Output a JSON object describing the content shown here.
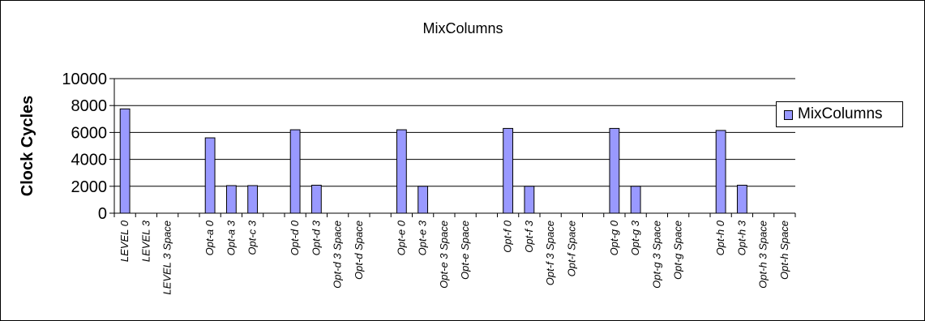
{
  "chart_data": {
    "type": "bar",
    "title": "MixColumns",
    "xlabel": "",
    "ylabel": "Clock Cycles",
    "ylim": [
      0,
      10000
    ],
    "yticks": [
      0,
      2000,
      4000,
      6000,
      8000,
      10000
    ],
    "grid": true,
    "legend_position": "right",
    "categories": [
      "LEVEL 0",
      "LEVEL 3",
      "LEVEL 3 Space",
      "",
      "Opt-a 0",
      "Opt-a 3",
      "Opt-c 3",
      "",
      "Opt-d 0",
      "Opt-d 3",
      "Opt-d 3 Space",
      "Opt-d  Space",
      "",
      "Opt-e 0",
      "Opt-e 3",
      "Opt-e 3 Space",
      "Opt-e  Space",
      "",
      "Opt-f 0",
      "Opt-f 3",
      "Opt-f 3 Space",
      "Opt-f  Space",
      "",
      "Opt-g 0",
      "Opt-g 3",
      "Opt-g 3 Space",
      "Opt-g  Space",
      "",
      "Opt-h 0",
      "Opt-h 3",
      "Opt-h 3 Space",
      "Opt-h  Space"
    ],
    "series": [
      {
        "name": "MixColumns",
        "color": "#9999ff",
        "values": [
          7750,
          0,
          0,
          0,
          5600,
          2050,
          2050,
          0,
          6200,
          2080,
          0,
          0,
          0,
          6200,
          2000,
          0,
          0,
          0,
          6300,
          2000,
          0,
          0,
          0,
          6300,
          2000,
          0,
          0,
          0,
          6150,
          2080,
          0,
          0
        ]
      }
    ]
  }
}
